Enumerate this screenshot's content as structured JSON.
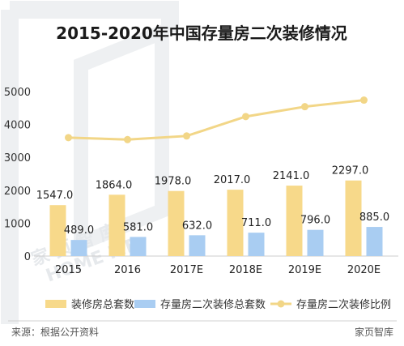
{
  "chart_data": {
    "type": "bar",
    "title": "2015-2020年中国存量房二次装修情况",
    "categories": [
      "2015",
      "2016",
      "2017E",
      "2018E",
      "2019E",
      "2020E"
    ],
    "ylim": [
      0,
      5000
    ],
    "yticks": [
      0,
      1000,
      2000,
      3000,
      4000,
      5000
    ],
    "grid": false,
    "legend_position": "bottom",
    "series": [
      {
        "name": "装修房总套数",
        "type": "bar",
        "color": "#f7d98a",
        "values": [
          1547.0,
          1864.0,
          1978.0,
          2017.0,
          2141.0,
          2297.0
        ],
        "labels": [
          "1547.0",
          "1864.0",
          "1978.0",
          "2017.0",
          "2141.0",
          "2297.0"
        ]
      },
      {
        "name": "存量房二次装修总套数",
        "type": "bar",
        "color": "#a9cdf2",
        "values": [
          489.0,
          581.0,
          632.0,
          711.0,
          796.0,
          885.0
        ],
        "labels": [
          "489.0",
          "581.0",
          "632.0",
          "711.0",
          "796.0",
          "885.0"
        ]
      },
      {
        "name": "存量房二次装修比例",
        "type": "line",
        "color": "#f2d687",
        "values": [
          3600,
          3540,
          3650,
          4240,
          4540,
          4740
        ]
      }
    ]
  },
  "footer": {
    "source": "来源：根据公开资料",
    "brand": "家页智库"
  },
  "watermark": {
    "line1": "家 页 智 库",
    "line2": "HOME ME"
  }
}
